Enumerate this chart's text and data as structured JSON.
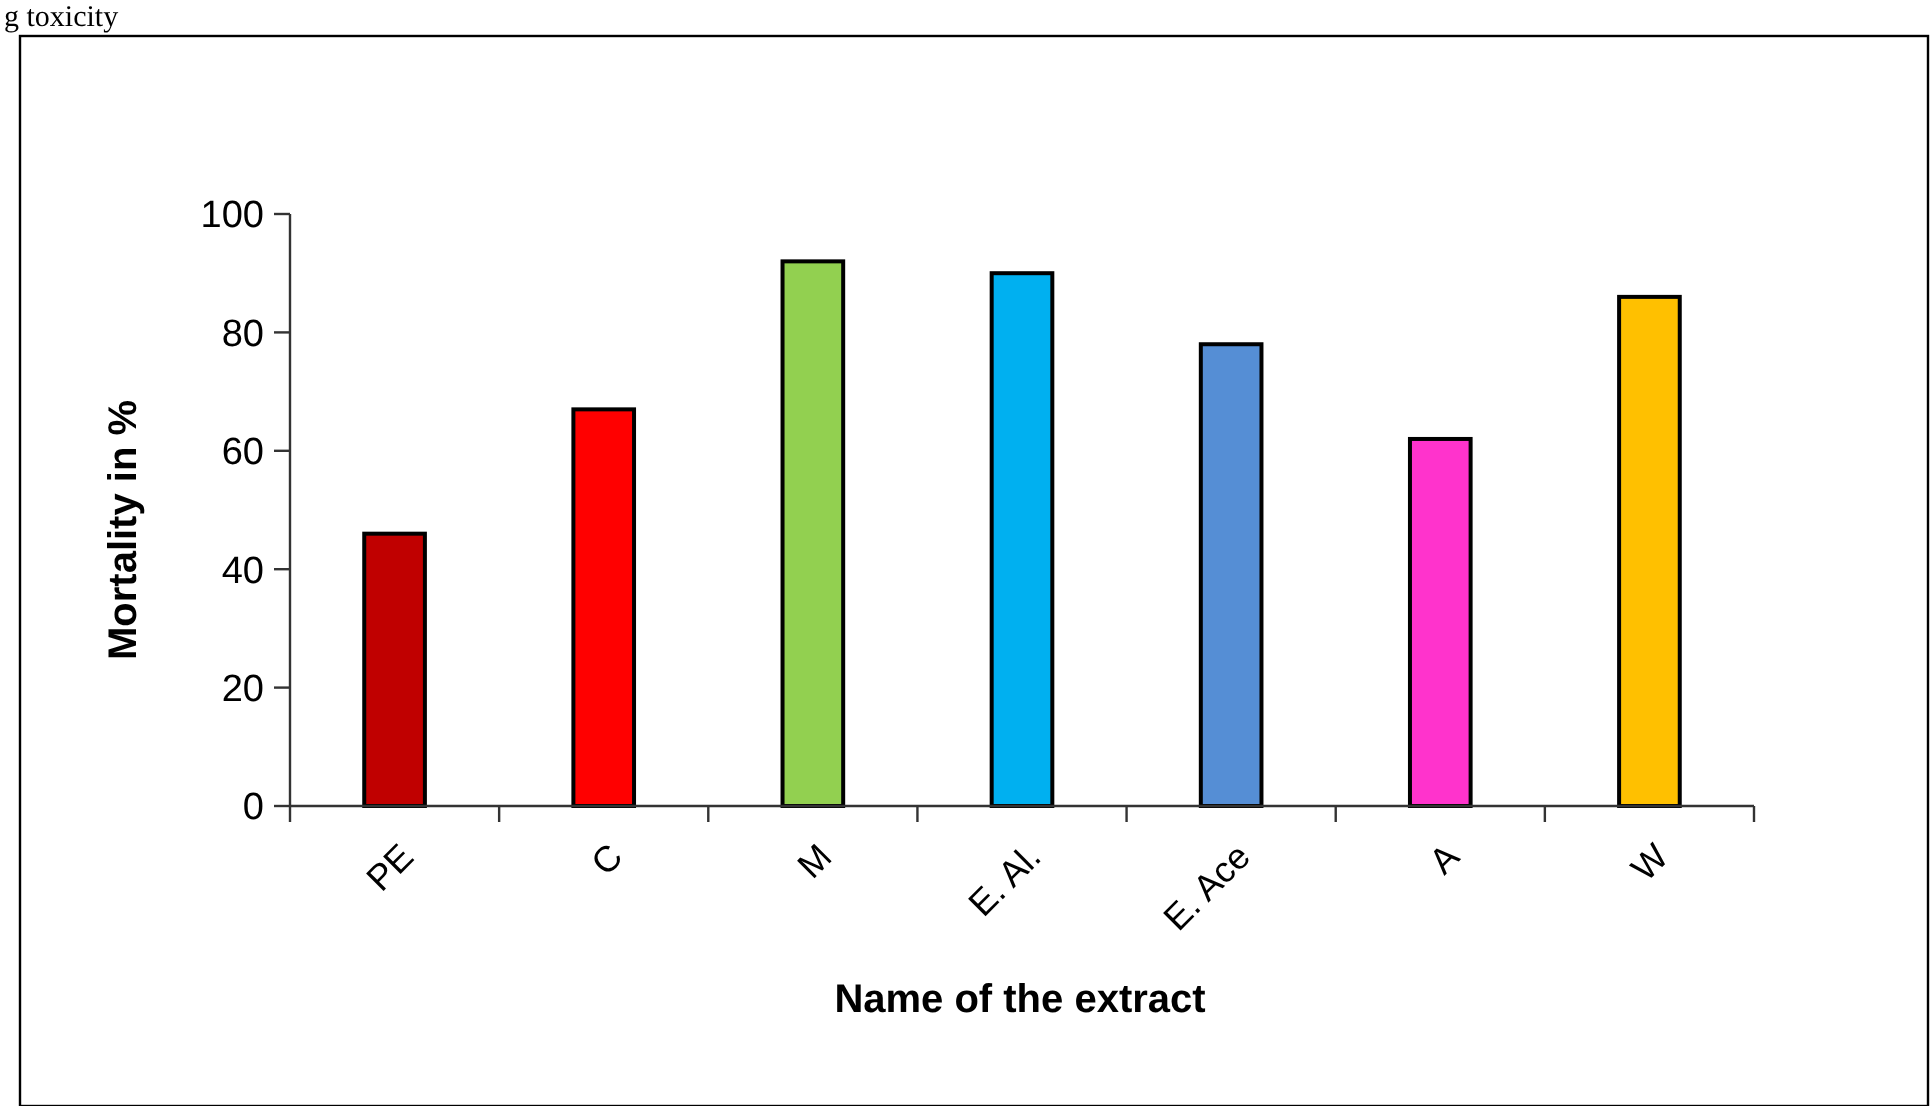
{
  "chart_data": {
    "type": "bar",
    "title": "g toxicity",
    "xlabel": "Name of the extract",
    "ylabel": "Mortality in %",
    "categories": [
      "PE",
      "C",
      "M",
      "E. Al.",
      "E. Ace",
      "A",
      "W"
    ],
    "values": [
      46,
      67,
      92,
      90,
      78,
      62,
      86
    ],
    "colors": [
      "#c00000",
      "#ff0000",
      "#92d050",
      "#00b0f0",
      "#558ed5",
      "#ff33cc",
      "#ffc000"
    ],
    "ylim": [
      0,
      100
    ],
    "yticks": [
      0,
      20,
      40,
      60,
      80,
      100
    ],
    "grid": false
  }
}
